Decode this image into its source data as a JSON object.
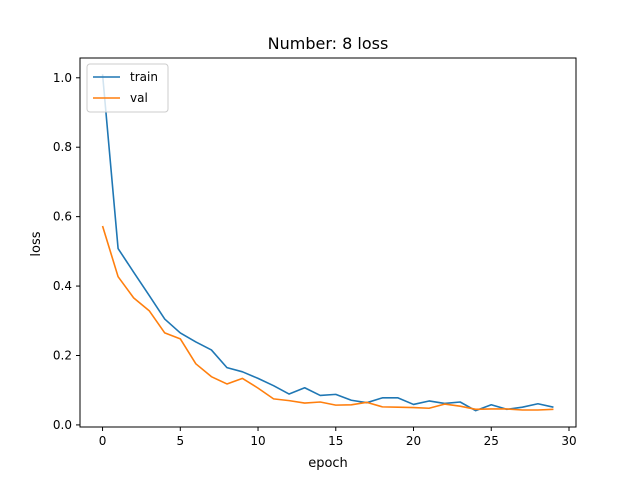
{
  "chart_data": {
    "type": "line",
    "title": "Number: 8 loss",
    "xlabel": "epoch",
    "ylabel": "loss",
    "xlim": [
      -1.45,
      30.45
    ],
    "ylim": [
      -0.006,
      1.057
    ],
    "xticks": [
      0,
      5,
      10,
      15,
      20,
      25,
      30
    ],
    "yticks": [
      0.0,
      0.2,
      0.4,
      0.6,
      0.8,
      1.0
    ],
    "xtick_labels": [
      "0",
      "5",
      "10",
      "15",
      "20",
      "25",
      "30"
    ],
    "ytick_labels": [
      "0.0",
      "0.2",
      "0.4",
      "0.6",
      "0.8",
      "1.0"
    ],
    "grid": false,
    "legend_position": "top-left",
    "x": [
      0,
      1,
      2,
      3,
      4,
      5,
      6,
      7,
      8,
      9,
      10,
      11,
      12,
      13,
      14,
      15,
      16,
      17,
      18,
      19,
      20,
      21,
      22,
      23,
      24,
      25,
      26,
      27,
      28,
      29
    ],
    "series": [
      {
        "name": "train",
        "color": "#1f77b4",
        "values": [
          1.01,
          0.508,
          0.44,
          0.373,
          0.305,
          0.265,
          0.239,
          0.216,
          0.165,
          0.153,
          0.134,
          0.113,
          0.089,
          0.107,
          0.085,
          0.088,
          0.071,
          0.064,
          0.078,
          0.078,
          0.059,
          0.069,
          0.062,
          0.066,
          0.041,
          0.058,
          0.045,
          0.051,
          0.061,
          0.051
        ]
      },
      {
        "name": "val",
        "color": "#ff7f0e",
        "values": [
          0.573,
          0.427,
          0.366,
          0.329,
          0.265,
          0.248,
          0.176,
          0.139,
          0.118,
          0.134,
          0.106,
          0.075,
          0.07,
          0.063,
          0.066,
          0.057,
          0.058,
          0.065,
          0.052,
          0.051,
          0.05,
          0.048,
          0.06,
          0.054,
          0.045,
          0.046,
          0.046,
          0.043,
          0.043,
          0.045
        ]
      }
    ]
  }
}
